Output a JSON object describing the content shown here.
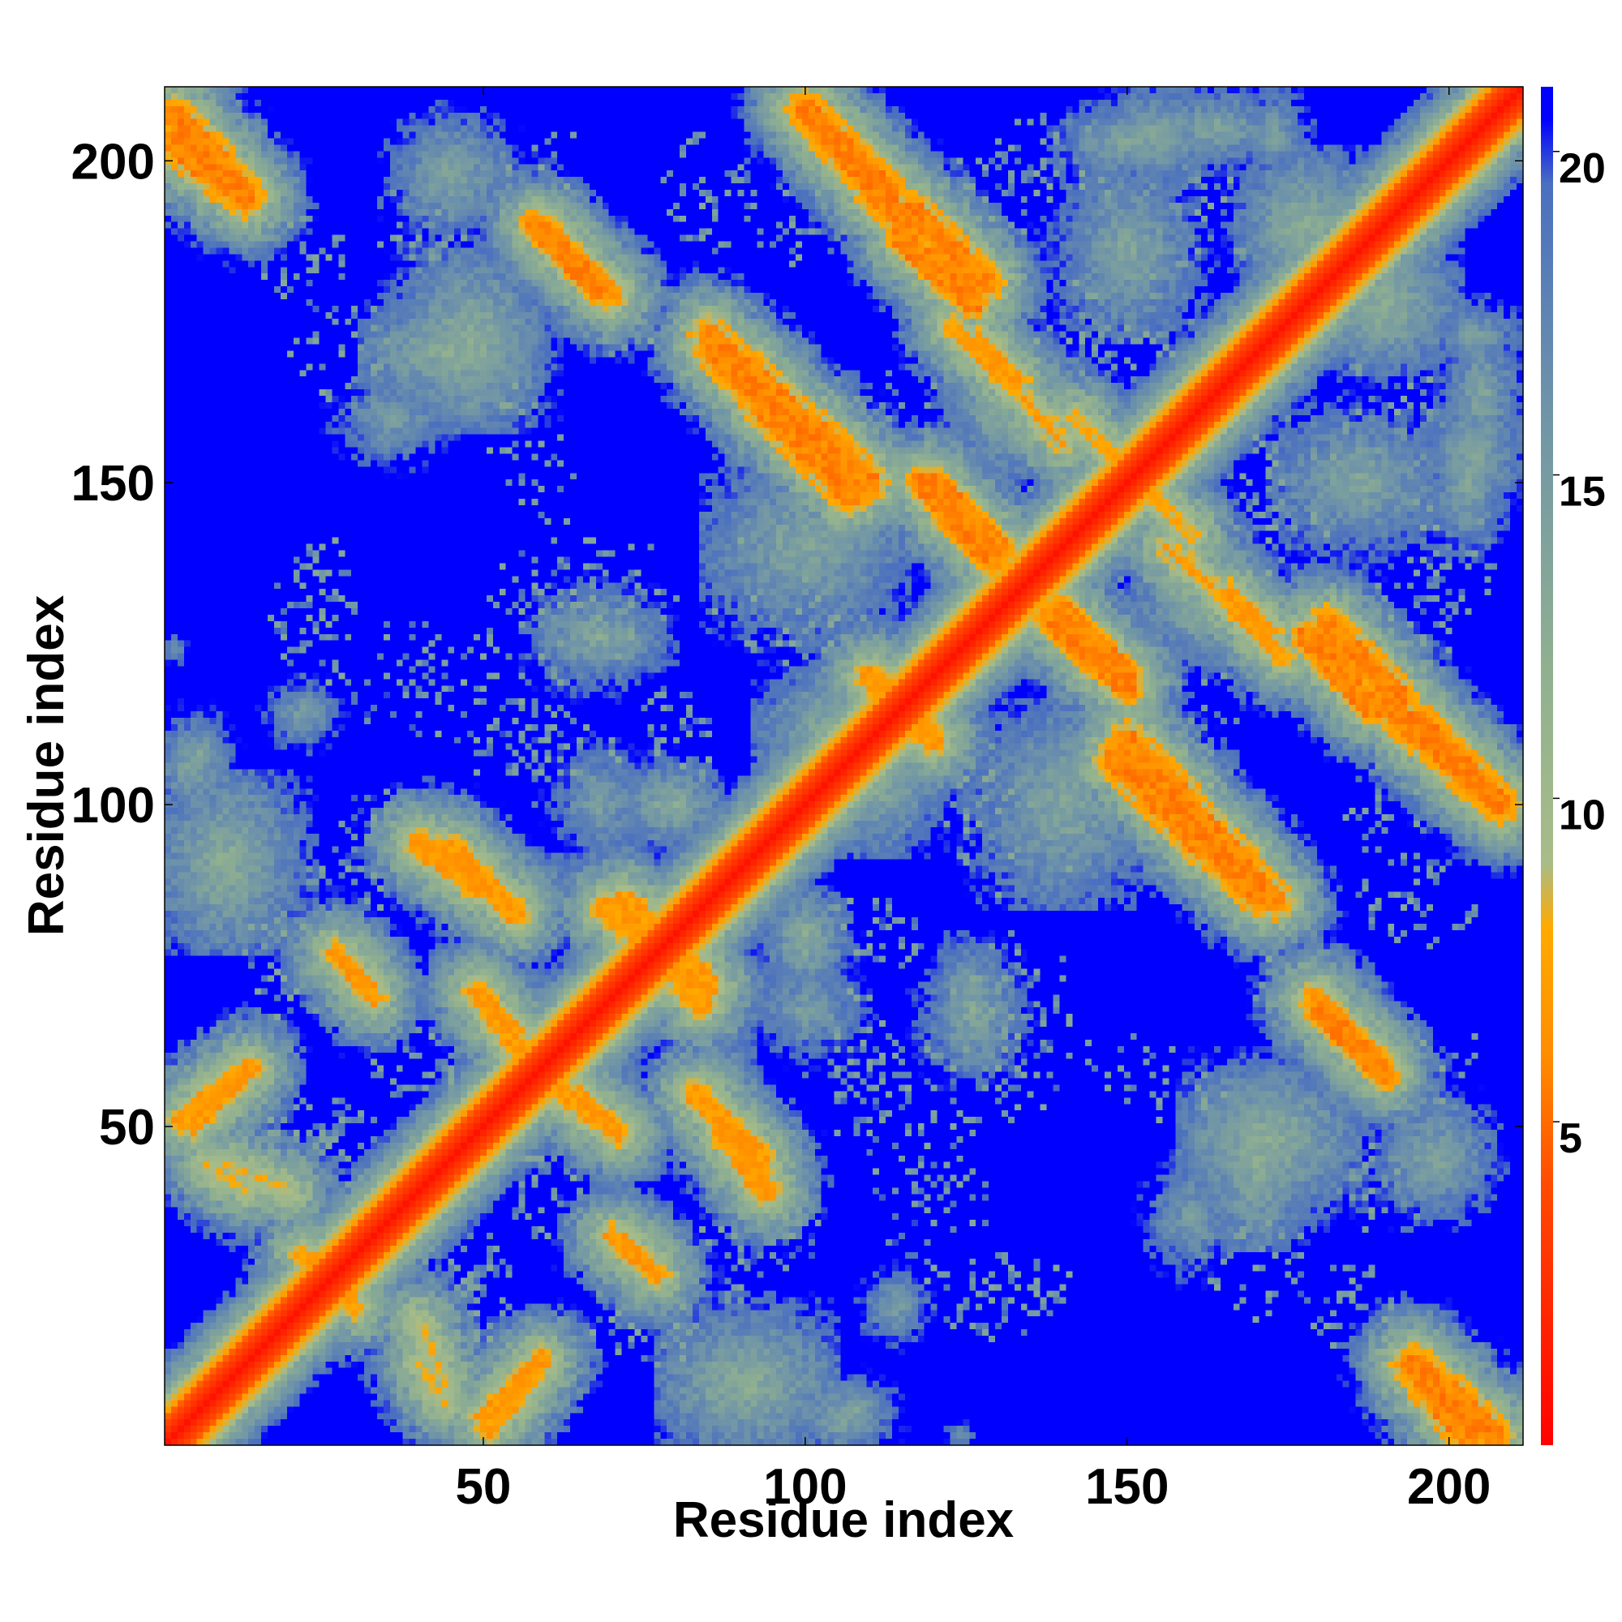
{
  "chart_data": {
    "type": "heatmap",
    "title": "",
    "xlabel": "Residue index",
    "ylabel": "Residue index",
    "n_residues": 211,
    "xlim": [
      1,
      211
    ],
    "ylim": [
      1,
      211
    ],
    "x_ticks": [
      50,
      100,
      150,
      200
    ],
    "y_ticks": [
      50,
      100,
      150,
      200
    ],
    "colorbar": {
      "range": [
        0,
        21
      ],
      "ticks": [
        5,
        10,
        15,
        20
      ],
      "stops": [
        {
          "value": 0,
          "color": "#ff0000"
        },
        {
          "value": 4,
          "color": "#ff4a00"
        },
        {
          "value": 6,
          "color": "#ff8c00"
        },
        {
          "value": 8,
          "color": "#ffaa00"
        },
        {
          "value": 9,
          "color": "#a8bc88"
        },
        {
          "value": 12,
          "color": "#90b090"
        },
        {
          "value": 16,
          "color": "#6f94a8"
        },
        {
          "value": 19.5,
          "color": "#4a6fc0"
        },
        {
          "value": 20.5,
          "color": "#0000ff"
        },
        {
          "value": 21,
          "color": "#0000ff"
        }
      ]
    },
    "background_value": 21,
    "diagonal_width": 4,
    "contacts": [
      {
        "x1": 2,
        "y1": 203,
        "x2": 13,
        "y2": 194,
        "d": 6,
        "w": 3
      },
      {
        "x1": 195,
        "y1": 13,
        "x2": 207,
        "y2": 2,
        "d": 6,
        "w": 3
      },
      {
        "x1": 3,
        "y1": 51,
        "x2": 13,
        "y2": 59,
        "d": 7,
        "w": 2
      },
      {
        "x1": 50,
        "y1": 5,
        "x2": 59,
        "y2": 14,
        "d": 7,
        "w": 2
      },
      {
        "x1": 10,
        "y1": 44,
        "x2": 20,
        "y2": 40,
        "d": 8,
        "w": 1.5
      },
      {
        "x1": 40,
        "y1": 13,
        "x2": 44,
        "y2": 7,
        "d": 8,
        "w": 1.5
      },
      {
        "x1": 40,
        "y1": 94,
        "x2": 50,
        "y2": 87,
        "d": 7,
        "w": 2.5
      },
      {
        "x1": 49,
        "y1": 71,
        "x2": 55,
        "y2": 65,
        "d": 7,
        "w": 2
      },
      {
        "x1": 61,
        "y1": 56,
        "x2": 71,
        "y2": 49,
        "d": 7,
        "w": 2
      },
      {
        "x1": 72,
        "y1": 85,
        "x2": 84,
        "y2": 69,
        "d": 7,
        "w": 2.5
      },
      {
        "x1": 83,
        "y1": 55,
        "x2": 93,
        "y2": 45,
        "d": 7,
        "w": 2.5
      },
      {
        "x1": 27,
        "y1": 77,
        "x2": 32,
        "y2": 72,
        "d": 7,
        "w": 2
      },
      {
        "x1": 58,
        "y1": 190,
        "x2": 68,
        "y2": 180,
        "d": 6,
        "w": 2.5
      },
      {
        "x1": 85,
        "y1": 173,
        "x2": 110,
        "y2": 150,
        "d": 6,
        "w": 3
      },
      {
        "x1": 100,
        "y1": 208,
        "x2": 113,
        "y2": 195,
        "d": 6,
        "w": 3
      },
      {
        "x1": 117,
        "y1": 192,
        "x2": 128,
        "y2": 181,
        "d": 6,
        "w": 3
      },
      {
        "x1": 123,
        "y1": 174,
        "x2": 132,
        "y2": 165,
        "d": 7,
        "w": 2
      },
      {
        "x1": 110,
        "y1": 120,
        "x2": 119,
        "y2": 111,
        "d": 7,
        "w": 2.5
      },
      {
        "x1": 120,
        "y1": 150,
        "x2": 130,
        "y2": 140,
        "d": 6,
        "w": 2.5
      },
      {
        "x1": 138,
        "y1": 129,
        "x2": 150,
        "y2": 118,
        "d": 6,
        "w": 2.5
      },
      {
        "x1": 148,
        "y1": 107,
        "x2": 170,
        "y2": 86,
        "d": 6,
        "w": 3
      },
      {
        "x1": 166,
        "y1": 133,
        "x2": 172,
        "y2": 127,
        "d": 7,
        "w": 2
      },
      {
        "x1": 178,
        "y1": 126,
        "x2": 188,
        "y2": 115,
        "d": 6,
        "w": 2.5
      },
      {
        "x1": 190,
        "y1": 116,
        "x2": 208,
        "y2": 100,
        "d": 6,
        "w": 3
      },
      {
        "x1": 179,
        "y1": 70,
        "x2": 189,
        "y2": 60,
        "d": 7,
        "w": 2.5
      },
      {
        "x1": 142,
        "y1": 160,
        "x2": 152,
        "y2": 150,
        "d": 8,
        "w": 2
      },
      {
        "x1": 156,
        "y1": 140,
        "x2": 163,
        "y2": 134,
        "d": 7,
        "w": 1.5
      },
      {
        "x1": 26,
        "y1": 28,
        "x2": 30,
        "y2": 22,
        "d": 7,
        "w": 2
      },
      {
        "x1": 70,
        "y1": 33,
        "x2": 76,
        "y2": 28,
        "d": 7,
        "w": 2
      }
    ],
    "halos": [
      {
        "x": 45,
        "y": 170,
        "rx": 8,
        "ry": 4,
        "d": 11
      },
      {
        "x": 68,
        "y": 126,
        "rx": 6,
        "ry": 4,
        "d": 12
      },
      {
        "x": 79,
        "y": 100,
        "rx": 4,
        "ry": 3,
        "d": 11
      },
      {
        "x": 91,
        "y": 10,
        "rx": 8,
        "ry": 6,
        "d": 11
      },
      {
        "x": 106,
        "y": 5,
        "rx": 4,
        "ry": 3,
        "d": 12
      },
      {
        "x": 114,
        "y": 22,
        "rx": 3,
        "ry": 3,
        "d": 13
      },
      {
        "x": 132,
        "y": 161,
        "rx": 5,
        "ry": 5,
        "d": 11
      },
      {
        "x": 110,
        "y": 104,
        "rx": 6,
        "ry": 6,
        "d": 11
      },
      {
        "x": 140,
        "y": 100,
        "rx": 8,
        "ry": 10,
        "d": 12
      },
      {
        "x": 186,
        "y": 150,
        "rx": 8,
        "ry": 6,
        "d": 12
      },
      {
        "x": 198,
        "y": 45,
        "rx": 5,
        "ry": 5,
        "d": 12
      },
      {
        "x": 172,
        "y": 48,
        "rx": 8,
        "ry": 6,
        "d": 11
      },
      {
        "x": 204,
        "y": 155,
        "rx": 4,
        "ry": 5,
        "d": 12
      },
      {
        "x": 204,
        "y": 173,
        "rx": 4,
        "ry": 3,
        "d": 13
      },
      {
        "x": 150,
        "y": 203,
        "rx": 6,
        "ry": 3,
        "d": 12
      },
      {
        "x": 164,
        "y": 205,
        "rx": 5,
        "ry": 3,
        "d": 12
      },
      {
        "x": 6,
        "y": 108,
        "rx": 2,
        "ry": 2,
        "d": 12
      },
      {
        "x": 2,
        "y": 124,
        "rx": 1,
        "ry": 1,
        "d": 14
      },
      {
        "x": 180,
        "y": 190,
        "rx": 6,
        "ry": 6,
        "d": 12
      },
      {
        "x": 190,
        "y": 177,
        "rx": 6,
        "ry": 5,
        "d": 11
      },
      {
        "x": 36,
        "y": 160,
        "rx": 5,
        "ry": 4,
        "d": 13
      },
      {
        "x": 57,
        "y": 87,
        "rx": 4,
        "ry": 3,
        "d": 12
      },
      {
        "x": 100,
        "y": 68,
        "rx": 5,
        "ry": 4,
        "d": 13
      }
    ],
    "speckles": [
      {
        "x": 45,
        "y": 25,
        "rx": 10,
        "ry": 10
      },
      {
        "x": 25,
        "y": 45,
        "rx": 10,
        "ry": 10
      },
      {
        "x": 75,
        "y": 20,
        "rx": 10,
        "ry": 8
      },
      {
        "x": 20,
        "y": 75,
        "rx": 8,
        "ry": 10
      },
      {
        "x": 90,
        "y": 30,
        "rx": 8,
        "ry": 8
      },
      {
        "x": 40,
        "y": 120,
        "rx": 12,
        "ry": 10
      },
      {
        "x": 70,
        "y": 132,
        "rx": 10,
        "ry": 10
      },
      {
        "x": 62,
        "y": 107,
        "rx": 10,
        "ry": 8
      },
      {
        "x": 22,
        "y": 130,
        "rx": 6,
        "ry": 10
      },
      {
        "x": 22,
        "y": 185,
        "rx": 8,
        "ry": 10
      },
      {
        "x": 55,
        "y": 160,
        "rx": 8,
        "ry": 8
      },
      {
        "x": 70,
        "y": 175,
        "rx": 8,
        "ry": 6
      },
      {
        "x": 95,
        "y": 135,
        "rx": 10,
        "ry": 12
      },
      {
        "x": 100,
        "y": 190,
        "rx": 8,
        "ry": 8
      },
      {
        "x": 130,
        "y": 195,
        "rx": 8,
        "ry": 8
      },
      {
        "x": 160,
        "y": 190,
        "rx": 10,
        "ry": 10
      },
      {
        "x": 190,
        "y": 195,
        "rx": 8,
        "ry": 6
      },
      {
        "x": 140,
        "y": 170,
        "rx": 10,
        "ry": 8
      },
      {
        "x": 150,
        "y": 140,
        "rx": 10,
        "ry": 8
      },
      {
        "x": 175,
        "y": 150,
        "rx": 10,
        "ry": 10
      },
      {
        "x": 200,
        "y": 140,
        "rx": 8,
        "ry": 12
      },
      {
        "x": 125,
        "y": 105,
        "rx": 8,
        "ry": 10
      },
      {
        "x": 160,
        "y": 115,
        "rx": 8,
        "ry": 8
      },
      {
        "x": 195,
        "y": 85,
        "rx": 10,
        "ry": 8
      },
      {
        "x": 130,
        "y": 60,
        "rx": 12,
        "ry": 10
      },
      {
        "x": 150,
        "y": 60,
        "rx": 8,
        "ry": 6
      },
      {
        "x": 170,
        "y": 30,
        "rx": 8,
        "ry": 10
      },
      {
        "x": 190,
        "y": 40,
        "rx": 8,
        "ry": 8
      },
      {
        "x": 200,
        "y": 60,
        "rx": 6,
        "ry": 8
      },
      {
        "x": 110,
        "y": 55,
        "rx": 8,
        "ry": 10
      },
      {
        "x": 130,
        "y": 25,
        "rx": 12,
        "ry": 6
      },
      {
        "x": 110,
        "y": 80,
        "rx": 10,
        "ry": 6
      },
      {
        "x": 60,
        "y": 40,
        "rx": 8,
        "ry": 8
      },
      {
        "x": 35,
        "y": 95,
        "rx": 8,
        "ry": 8
      },
      {
        "x": 45,
        "y": 55,
        "rx": 6,
        "ry": 6
      }
    ]
  }
}
